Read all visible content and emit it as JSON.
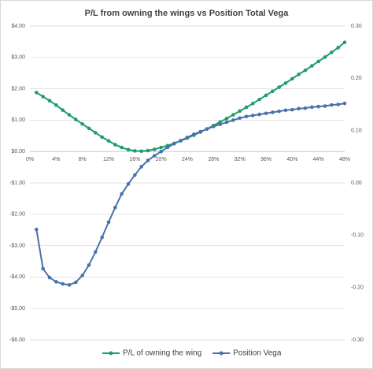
{
  "chart_data": {
    "type": "line",
    "title": "P/L from owning the wings vs Position Total Vega",
    "x": [
      1,
      2,
      3,
      4,
      5,
      6,
      7,
      8,
      9,
      10,
      11,
      12,
      13,
      14,
      15,
      16,
      17,
      18,
      19,
      20,
      21,
      22,
      23,
      24,
      25,
      26,
      27,
      28,
      29,
      30,
      31,
      32,
      33,
      34,
      35,
      36,
      37,
      38,
      39,
      40,
      41,
      42,
      43,
      44,
      45,
      46,
      47,
      48
    ],
    "series": [
      {
        "name": "P/L of owning the wing",
        "color": "#1f9d6b",
        "axis": "y",
        "values": [
          1.88,
          1.75,
          1.62,
          1.48,
          1.32,
          1.17,
          1.02,
          0.88,
          0.74,
          0.6,
          0.46,
          0.34,
          0.22,
          0.13,
          0.06,
          0.02,
          0.01,
          0.03,
          0.07,
          0.13,
          0.19,
          0.26,
          0.34,
          0.43,
          0.52,
          0.62,
          0.72,
          0.83,
          0.94,
          1.05,
          1.17,
          1.29,
          1.41,
          1.53,
          1.66,
          1.79,
          1.92,
          2.05,
          2.18,
          2.32,
          2.46,
          2.59,
          2.73,
          2.87,
          3.01,
          3.16,
          3.31,
          3.48
        ]
      },
      {
        "name": "Position Vega",
        "color": "#4a72a8",
        "axis": "y2",
        "values": [
          -0.089,
          -0.164,
          -0.181,
          -0.189,
          -0.193,
          -0.195,
          -0.19,
          -0.177,
          -0.157,
          -0.132,
          -0.104,
          -0.075,
          -0.047,
          -0.021,
          -0.002,
          0.015,
          0.031,
          0.043,
          0.052,
          0.06,
          0.068,
          0.075,
          0.081,
          0.087,
          0.093,
          0.098,
          0.103,
          0.108,
          0.112,
          0.116,
          0.12,
          0.124,
          0.127,
          0.129,
          0.131,
          0.133,
          0.135,
          0.137,
          0.139,
          0.14,
          0.142,
          0.143,
          0.145,
          0.146,
          0.147,
          0.149,
          0.15,
          0.152
        ]
      }
    ],
    "xlim": [
      0,
      48
    ],
    "xticks": [
      {
        "value": 0,
        "label": "0%"
      },
      {
        "value": 4,
        "label": "4%"
      },
      {
        "value": 8,
        "label": "8%"
      },
      {
        "value": 12,
        "label": "12%"
      },
      {
        "value": 16,
        "label": "16%"
      },
      {
        "value": 20,
        "label": "20%"
      },
      {
        "value": 24,
        "label": "24%"
      },
      {
        "value": 28,
        "label": "28%"
      },
      {
        "value": 32,
        "label": "32%"
      },
      {
        "value": 36,
        "label": "36%"
      },
      {
        "value": 40,
        "label": "40%"
      },
      {
        "value": 44,
        "label": "44%"
      },
      {
        "value": 48,
        "label": "48%"
      }
    ],
    "ylim": [
      -6,
      4
    ],
    "yticks": [
      {
        "value": 4,
        "label": "$4.00"
      },
      {
        "value": 3,
        "label": "$3.00"
      },
      {
        "value": 2,
        "label": "$2.00"
      },
      {
        "value": 1,
        "label": "$1.00"
      },
      {
        "value": 0,
        "label": "$0.00"
      },
      {
        "value": -1,
        "label": "-$1.00"
      },
      {
        "value": -2,
        "label": "-$2.00"
      },
      {
        "value": -3,
        "label": "-$3.00"
      },
      {
        "value": -4,
        "label": "-$4.00"
      },
      {
        "value": -5,
        "label": "-$5.00"
      },
      {
        "value": -6,
        "label": "-$6.00"
      }
    ],
    "y2lim": [
      -0.3,
      0.3
    ],
    "y2ticks": [
      {
        "value": 0.3,
        "label": "0.30"
      },
      {
        "value": 0.2,
        "label": "0.20"
      },
      {
        "value": 0.1,
        "label": "0.10"
      },
      {
        "value": 0,
        "label": "0.00"
      },
      {
        "value": -0.1,
        "label": "-0.10"
      },
      {
        "value": -0.2,
        "label": "-0.20"
      },
      {
        "value": -0.3,
        "label": "-0.30"
      }
    ],
    "grid": true,
    "legend": "bottom"
  }
}
